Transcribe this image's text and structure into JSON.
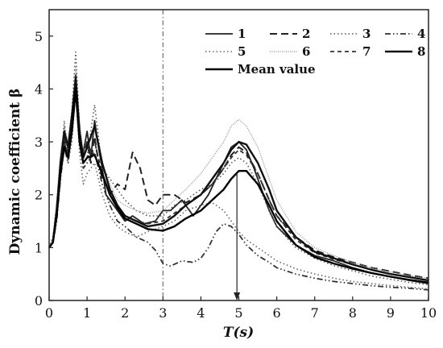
{
  "chart_data": {
    "type": "line",
    "xlabel": "T(s)",
    "ylabel": "Dynamic coefficient β",
    "xlim": [
      0,
      10
    ],
    "ylim": [
      0,
      5.5
    ],
    "xticks": [
      "0",
      "1",
      "2",
      "3",
      "4",
      "5",
      "6",
      "7",
      "8",
      "9",
      "10"
    ],
    "yticks": [
      "0",
      "1",
      "2",
      "3",
      "4",
      "5"
    ],
    "grid": false,
    "legend_position": "top-right",
    "annotations": [
      {
        "type": "vertical-dashdot-line",
        "x": 3
      },
      {
        "type": "vertical-arrow-down",
        "x": 4.95,
        "y_from": 2.4,
        "y_to": 0
      }
    ],
    "series": [
      {
        "name": "1",
        "style": "solid",
        "color": "#222222",
        "x": [
          0,
          0.1,
          0.2,
          0.3,
          0.4,
          0.5,
          0.6,
          0.7,
          0.8,
          0.9,
          1.0,
          1.1,
          1.2,
          1.3,
          1.4,
          1.5,
          1.6,
          1.8,
          2.0,
          2.2,
          2.5,
          2.8,
          3.0,
          3.2,
          3.5,
          3.8,
          4.0,
          4.2,
          4.4,
          4.6,
          4.8,
          5.0,
          5.2,
          5.4,
          5.6,
          5.8,
          6.0,
          6.5,
          7.0,
          7.5,
          8.0,
          8.5,
          9.0,
          9.5,
          10.0
        ],
        "y": [
          1.0,
          1.1,
          1.6,
          2.4,
          3.0,
          2.7,
          3.4,
          4.1,
          3.0,
          2.8,
          3.2,
          2.7,
          3.4,
          2.9,
          2.5,
          2.0,
          1.9,
          1.7,
          1.5,
          1.6,
          1.45,
          1.5,
          1.7,
          1.7,
          1.9,
          1.6,
          1.8,
          2.0,
          2.3,
          2.6,
          2.9,
          3.0,
          2.85,
          2.5,
          2.1,
          1.7,
          1.4,
          1.05,
          0.85,
          0.75,
          0.62,
          0.52,
          0.45,
          0.38,
          0.32
        ]
      },
      {
        "name": "2",
        "style": "dashed",
        "color": "#222222",
        "x": [
          0,
          0.1,
          0.2,
          0.3,
          0.4,
          0.5,
          0.6,
          0.7,
          0.8,
          0.9,
          1.0,
          1.1,
          1.2,
          1.3,
          1.4,
          1.5,
          1.6,
          1.8,
          2.0,
          2.2,
          2.4,
          2.6,
          2.8,
          3.0,
          3.3,
          3.6,
          4.0,
          4.3,
          4.6,
          4.8,
          5.0,
          5.2,
          5.5,
          5.8,
          6.0,
          6.5,
          7.0,
          7.5,
          8.0,
          8.5,
          9.0,
          9.5,
          10.0
        ],
        "y": [
          1.0,
          1.1,
          1.7,
          2.5,
          3.1,
          2.8,
          3.5,
          4.2,
          3.2,
          2.7,
          3.0,
          2.6,
          3.1,
          2.6,
          2.3,
          2.2,
          2.0,
          2.2,
          2.1,
          2.8,
          2.5,
          1.9,
          1.8,
          2.0,
          2.0,
          1.85,
          2.0,
          2.2,
          2.5,
          2.75,
          2.9,
          2.8,
          2.4,
          1.9,
          1.6,
          1.2,
          0.95,
          0.82,
          0.72,
          0.62,
          0.55,
          0.48,
          0.42
        ]
      },
      {
        "name": "3",
        "style": "dotted",
        "color": "#555555",
        "x": [
          0,
          0.1,
          0.2,
          0.3,
          0.4,
          0.5,
          0.6,
          0.7,
          0.8,
          0.9,
          1.0,
          1.2,
          1.4,
          1.6,
          1.8,
          2.0,
          2.3,
          2.6,
          3.0,
          3.3,
          3.6,
          4.0,
          4.3,
          4.6,
          4.8,
          5.0,
          5.2,
          5.5,
          5.8,
          6.0,
          6.5,
          7.0,
          7.5,
          8.0,
          8.5,
          9.0,
          9.5,
          10.0
        ],
        "y": [
          1.0,
          1.2,
          1.8,
          2.6,
          3.3,
          2.9,
          3.6,
          4.7,
          3.3,
          2.6,
          2.7,
          3.7,
          2.5,
          2.3,
          2.1,
          1.9,
          1.7,
          1.6,
          1.6,
          1.8,
          1.9,
          2.1,
          2.2,
          2.4,
          2.6,
          2.7,
          2.6,
          2.2,
          1.7,
          1.4,
          1.0,
          0.8,
          0.66,
          0.56,
          0.46,
          0.4,
          0.34,
          0.3
        ]
      },
      {
        "name": "4",
        "style": "dashdotdot",
        "color": "#333333",
        "x": [
          0,
          0.1,
          0.2,
          0.3,
          0.4,
          0.5,
          0.6,
          0.7,
          0.8,
          0.9,
          1.0,
          1.2,
          1.4,
          1.6,
          1.8,
          2.0,
          2.3,
          2.6,
          2.8,
          3.0,
          3.2,
          3.5,
          3.8,
          4.0,
          4.2,
          4.4,
          4.6,
          4.8,
          5.0,
          5.2,
          5.5,
          5.8,
          6.0,
          6.5,
          7.0,
          7.5,
          8.0,
          8.5,
          9.0,
          9.5,
          10.0
        ],
        "y": [
          1.0,
          1.1,
          1.5,
          2.3,
          2.9,
          2.6,
          3.2,
          3.9,
          3.0,
          2.5,
          2.6,
          2.8,
          2.2,
          1.8,
          1.5,
          1.4,
          1.2,
          1.1,
          0.95,
          0.7,
          0.65,
          0.75,
          0.72,
          0.8,
          1.0,
          1.3,
          1.45,
          1.4,
          1.25,
          1.05,
          0.85,
          0.72,
          0.62,
          0.5,
          0.42,
          0.36,
          0.32,
          0.28,
          0.25,
          0.23,
          0.2
        ]
      },
      {
        "name": "5",
        "style": "dotted",
        "color": "#666666",
        "x": [
          0,
          0.1,
          0.2,
          0.3,
          0.4,
          0.5,
          0.6,
          0.7,
          0.8,
          0.9,
          1.0,
          1.2,
          1.4,
          1.6,
          1.8,
          2.0,
          2.3,
          2.6,
          3.0,
          3.3,
          3.6,
          4.0,
          4.3,
          4.6,
          4.8,
          5.0,
          5.2,
          5.5,
          5.8,
          6.0,
          6.5,
          7.0,
          7.5,
          8.0,
          8.5,
          9.0,
          9.5,
          10.0
        ],
        "y": [
          1.0,
          1.15,
          1.7,
          2.4,
          3.4,
          2.6,
          3.0,
          4.0,
          2.8,
          2.2,
          2.4,
          2.6,
          2.0,
          1.6,
          1.4,
          1.3,
          1.2,
          1.3,
          1.4,
          1.5,
          1.7,
          1.8,
          1.85,
          1.7,
          1.5,
          1.3,
          1.15,
          1.0,
          0.85,
          0.75,
          0.6,
          0.5,
          0.42,
          0.36,
          0.32,
          0.28,
          0.25,
          0.22
        ]
      },
      {
        "name": "6",
        "style": "dense-dotted",
        "color": "#888888",
        "x": [
          0,
          0.1,
          0.2,
          0.3,
          0.4,
          0.5,
          0.6,
          0.7,
          0.8,
          0.9,
          1.0,
          1.2,
          1.4,
          1.6,
          1.8,
          2.0,
          2.3,
          2.6,
          3.0,
          3.3,
          3.6,
          4.0,
          4.3,
          4.6,
          4.8,
          5.0,
          5.2,
          5.5,
          5.8,
          6.0,
          6.5,
          7.0,
          7.5,
          8.0,
          8.5,
          9.0,
          9.5,
          10.0
        ],
        "y": [
          1.0,
          1.2,
          1.9,
          2.8,
          3.3,
          3.0,
          3.6,
          4.4,
          3.4,
          2.8,
          2.9,
          3.2,
          2.6,
          2.2,
          1.9,
          1.8,
          1.7,
          1.65,
          1.7,
          1.9,
          2.1,
          2.4,
          2.7,
          3.0,
          3.3,
          3.42,
          3.3,
          2.9,
          2.3,
          1.9,
          1.3,
          1.0,
          0.85,
          0.72,
          0.62,
          0.54,
          0.47,
          0.42
        ]
      },
      {
        "name": "7",
        "style": "dashed-short",
        "color": "#333333",
        "x": [
          0,
          0.1,
          0.2,
          0.3,
          0.4,
          0.5,
          0.6,
          0.7,
          0.8,
          0.9,
          1.0,
          1.2,
          1.4,
          1.6,
          1.8,
          2.0,
          2.3,
          2.6,
          3.0,
          3.3,
          3.6,
          4.0,
          4.3,
          4.6,
          4.8,
          5.0,
          5.2,
          5.5,
          5.8,
          6.0,
          6.5,
          7.0,
          7.5,
          8.0,
          8.5,
          9.0,
          9.5,
          10.0
        ],
        "y": [
          1.0,
          1.1,
          1.6,
          2.5,
          3.0,
          2.7,
          3.3,
          4.3,
          3.1,
          2.6,
          2.7,
          3.0,
          2.4,
          2.0,
          1.8,
          1.6,
          1.5,
          1.45,
          1.5,
          1.65,
          1.8,
          2.0,
          2.2,
          2.5,
          2.7,
          2.85,
          2.75,
          2.4,
          1.9,
          1.6,
          1.15,
          0.9,
          0.78,
          0.68,
          0.58,
          0.5,
          0.44,
          0.38
        ]
      },
      {
        "name": "8",
        "style": "solid-thick",
        "color": "#111111",
        "x": [
          0,
          0.1,
          0.2,
          0.3,
          0.4,
          0.5,
          0.6,
          0.7,
          0.8,
          0.9,
          1.0,
          1.2,
          1.4,
          1.6,
          1.8,
          2.0,
          2.3,
          2.6,
          3.0,
          3.3,
          3.6,
          4.0,
          4.3,
          4.6,
          4.8,
          5.0,
          5.2,
          5.5,
          5.8,
          6.0,
          6.5,
          7.0,
          7.5,
          8.0,
          8.5,
          9.0,
          9.5,
          10.0
        ],
        "y": [
          1.0,
          1.1,
          1.7,
          2.6,
          3.2,
          2.9,
          3.5,
          4.2,
          3.2,
          2.7,
          2.9,
          3.3,
          2.6,
          2.1,
          1.8,
          1.6,
          1.5,
          1.4,
          1.45,
          1.6,
          1.8,
          2.0,
          2.3,
          2.6,
          2.85,
          3.0,
          2.95,
          2.6,
          2.1,
          1.7,
          1.2,
          0.92,
          0.8,
          0.68,
          0.58,
          0.5,
          0.44,
          0.38
        ]
      },
      {
        "name": "Mean value",
        "style": "solid-thick",
        "color": "#000000",
        "x": [
          0,
          0.1,
          0.2,
          0.3,
          0.4,
          0.5,
          0.6,
          0.7,
          0.8,
          0.9,
          1.0,
          1.2,
          1.4,
          1.6,
          1.8,
          2.0,
          2.3,
          2.6,
          3.0,
          3.3,
          3.6,
          4.0,
          4.3,
          4.6,
          4.8,
          5.0,
          5.2,
          5.5,
          5.8,
          6.0,
          6.5,
          7.0,
          7.5,
          8.0,
          8.5,
          9.0,
          9.5,
          10.0
        ],
        "y": [
          1.0,
          1.1,
          1.6,
          2.4,
          2.9,
          2.7,
          3.2,
          4.0,
          3.0,
          2.6,
          2.7,
          2.75,
          2.4,
          2.0,
          1.75,
          1.55,
          1.45,
          1.35,
          1.32,
          1.4,
          1.55,
          1.7,
          1.9,
          2.1,
          2.3,
          2.45,
          2.45,
          2.2,
          1.8,
          1.5,
          1.05,
          0.82,
          0.7,
          0.6,
          0.52,
          0.45,
          0.39,
          0.34
        ]
      }
    ]
  }
}
